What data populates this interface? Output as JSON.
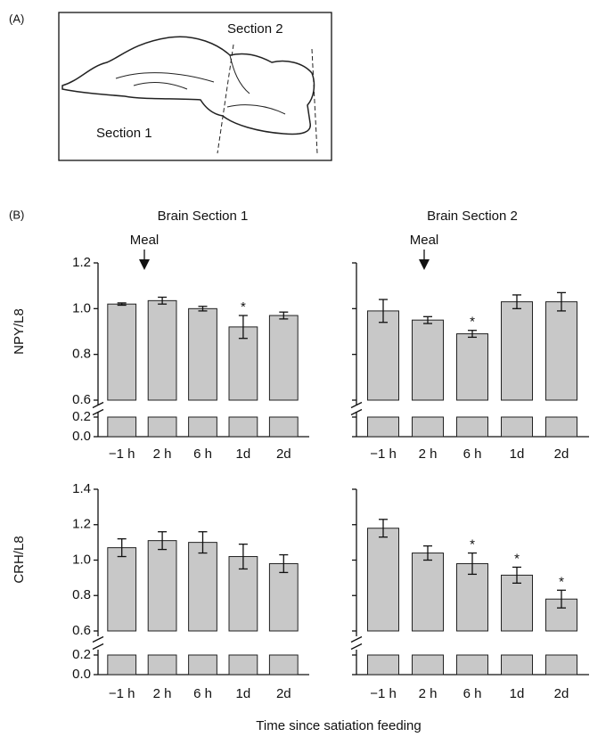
{
  "panel_a": {
    "label": "(A)",
    "section_1": "Section 1",
    "section_2": "Section 2"
  },
  "panel_b_label": "(B)",
  "x_label": "Time since satiation feeding",
  "chart_data": [
    {
      "type": "bar",
      "title": "Brain Section 1",
      "ylabel": "NPY/L8",
      "annotation": "Meal",
      "categories": [
        "−1 h",
        "2 h",
        "6 h",
        "1d",
        "2d"
      ],
      "values": [
        1.02,
        1.035,
        1.0,
        0.92,
        0.97
      ],
      "errors": [
        0.005,
        0.015,
        0.01,
        0.05,
        0.015
      ],
      "significant": [
        false,
        false,
        false,
        true,
        false
      ],
      "significance_mark": "*",
      "color": "#c8c8c8",
      "ylim": [
        0.6,
        1.2
      ],
      "yticks": [
        0.6,
        0.8,
        {
          "value": 1,
          "label": "1.0"
        },
        1.2
      ],
      "ylim_lower": [
        0,
        0.2
      ],
      "yticks_lower": [
        {
          "value": 0,
          "label": "0.0"
        },
        0.2
      ],
      "show_tick_labels": true
    },
    {
      "type": "bar",
      "title": "Brain Section 2",
      "annotation": "Meal",
      "categories": [
        "−1 h",
        "2 h",
        "6 h",
        "1d",
        "2d"
      ],
      "values": [
        0.99,
        0.95,
        0.89,
        1.03,
        1.03
      ],
      "errors": [
        0.05,
        0.015,
        0.015,
        0.03,
        0.04
      ],
      "significant": [
        false,
        false,
        true,
        false,
        false
      ],
      "significance_mark": "*",
      "color": "#c8c8c8",
      "ylim": [
        0.6,
        1.2
      ],
      "yticks": [
        0.6,
        0.8,
        1,
        1.2
      ],
      "ylim_lower": [
        0,
        0.2
      ],
      "yticks_lower": [
        0,
        0.2
      ],
      "show_tick_labels": false
    },
    {
      "type": "bar",
      "ylabel": "CRH/L8",
      "categories": [
        "−1 h",
        "2 h",
        "6 h",
        "1d",
        "2d"
      ],
      "values": [
        1.07,
        1.11,
        1.1,
        1.02,
        0.98
      ],
      "errors": [
        0.05,
        0.05,
        0.06,
        0.07,
        0.05
      ],
      "significant": [
        false,
        false,
        false,
        false,
        false
      ],
      "significance_mark": "*",
      "color": "#c8c8c8",
      "ylim": [
        0.6,
        1.4
      ],
      "yticks": [
        0.6,
        0.8,
        {
          "value": 1,
          "label": "1.0"
        },
        1.2,
        1.4
      ],
      "ylim_lower": [
        0,
        0.2
      ],
      "yticks_lower": [
        {
          "value": 0,
          "label": "0.0"
        },
        0.2
      ],
      "show_tick_labels": true
    },
    {
      "type": "bar",
      "categories": [
        "−1 h",
        "2 h",
        "6 h",
        "1d",
        "2d"
      ],
      "values": [
        1.18,
        1.04,
        0.98,
        0.915,
        0.78
      ],
      "errors": [
        0.05,
        0.04,
        0.06,
        0.045,
        0.05
      ],
      "significant": [
        false,
        false,
        true,
        true,
        true
      ],
      "significance_mark": "*",
      "color": "#c8c8c8",
      "ylim": [
        0.6,
        1.4
      ],
      "yticks": [
        0.6,
        0.8,
        1,
        1.2,
        1.4
      ],
      "ylim_lower": [
        0,
        0.2
      ],
      "yticks_lower": [
        0,
        0.2
      ],
      "show_tick_labels": false
    }
  ]
}
